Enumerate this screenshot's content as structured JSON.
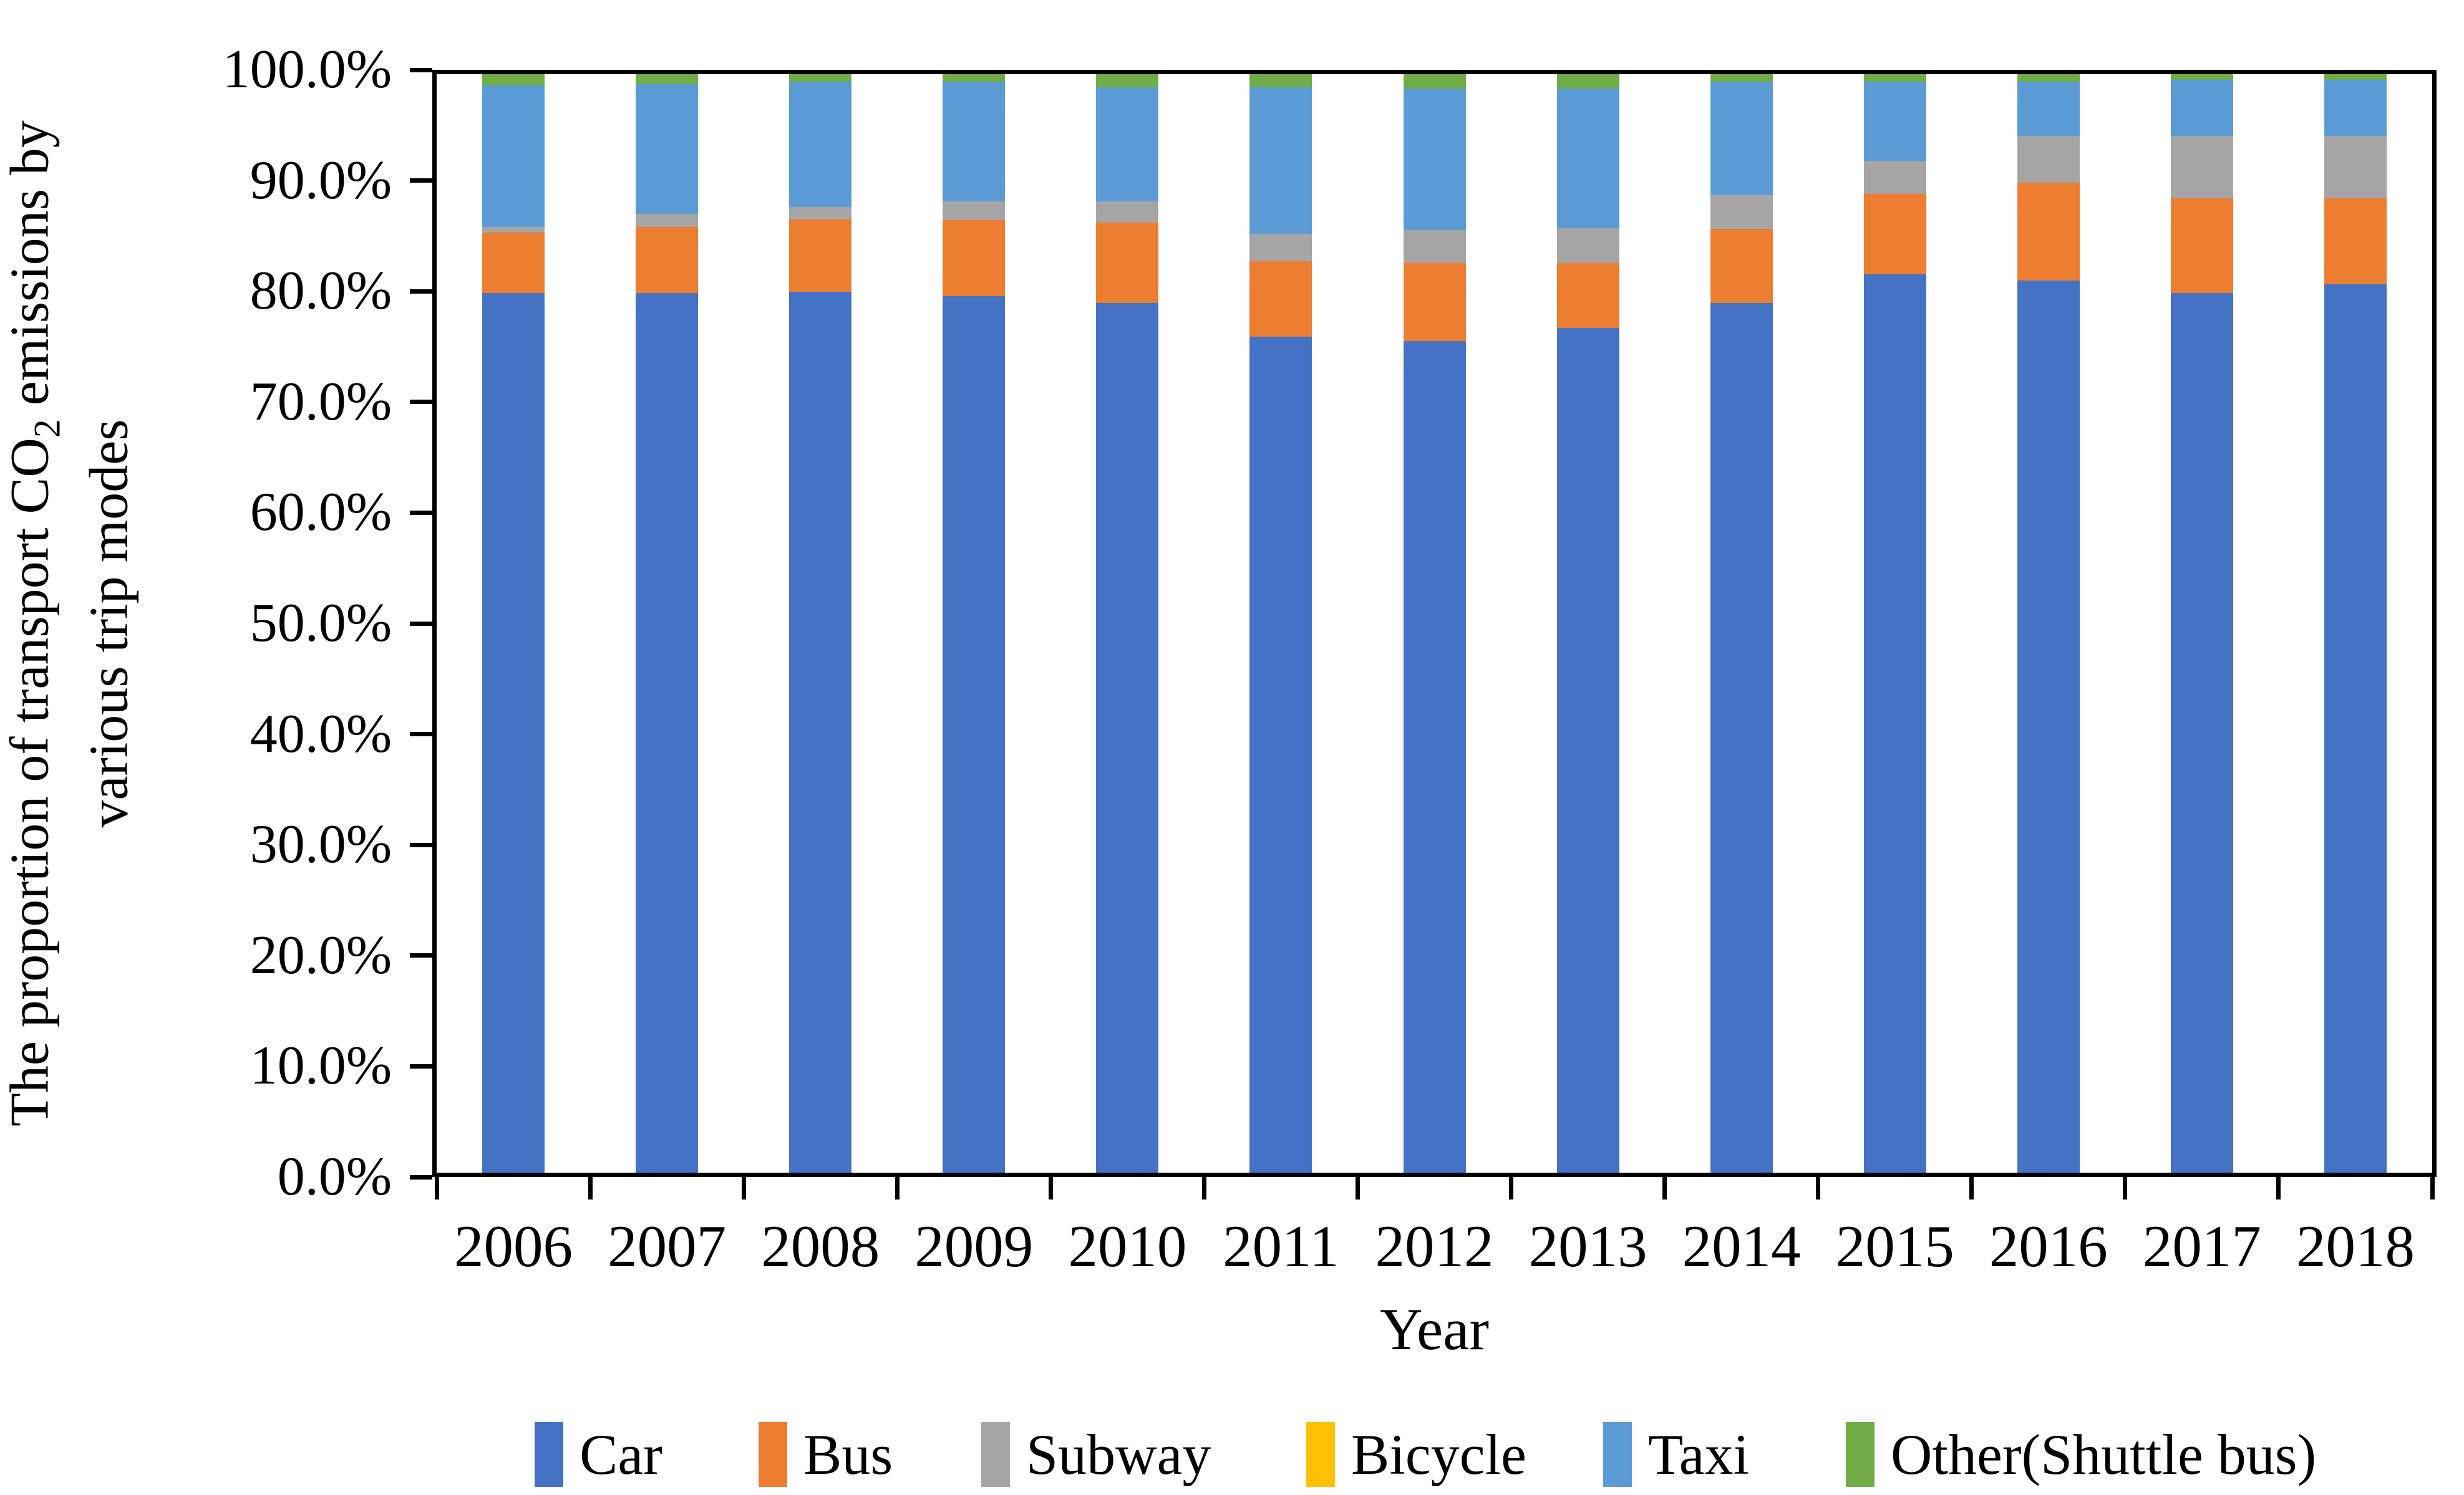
{
  "chart_data": {
    "type": "bar",
    "stacked": true,
    "orientation": "vertical",
    "grid": false,
    "legend_position": "bottom",
    "categories": [
      "2006",
      "2007",
      "2008",
      "2009",
      "2010",
      "2011",
      "2012",
      "2013",
      "2014",
      "2015",
      "2016",
      "2017",
      "2018"
    ],
    "series": [
      {
        "name": "Car",
        "color": "#4472C4",
        "values": [
          80.1,
          80.1,
          80.2,
          79.8,
          79.2,
          76.1,
          75.7,
          76.9,
          79.2,
          81.8,
          81.2,
          80.1,
          80.9
        ]
      },
      {
        "name": "Bus",
        "color": "#ED7D31",
        "values": [
          5.5,
          6.0,
          6.6,
          6.9,
          7.3,
          6.9,
          7.1,
          5.9,
          6.7,
          7.3,
          8.9,
          8.6,
          7.8
        ]
      },
      {
        "name": "Subway",
        "color": "#A5A5A5",
        "values": [
          0.5,
          1.2,
          1.1,
          1.7,
          1.9,
          2.5,
          3.0,
          3.2,
          3.1,
          3.0,
          4.3,
          5.7,
          5.7
        ]
      },
      {
        "name": "Bicycle",
        "color": "#FFC000",
        "values": [
          0.0,
          0.0,
          0.0,
          0.0,
          0.0,
          0.0,
          0.0,
          0.0,
          0.0,
          0.0,
          0.0,
          0.0,
          0.0
        ]
      },
      {
        "name": "Taxi",
        "color": "#5B9BD5",
        "values": [
          12.9,
          11.8,
          11.4,
          10.9,
          10.4,
          13.3,
          12.9,
          12.7,
          10.3,
          7.2,
          4.9,
          5.1,
          5.1
        ]
      },
      {
        "name": "Other(Shuttle bus)",
        "color": "#70AD47",
        "values": [
          1.0,
          0.9,
          0.7,
          0.7,
          1.2,
          1.2,
          1.3,
          1.3,
          0.7,
          0.7,
          0.7,
          0.5,
          0.5
        ]
      }
    ],
    "xlabel": "Year",
    "ylabel": "The proportion of transport CO2 emissions by various trip modes",
    "ylim": [
      0,
      100
    ],
    "y_tick_labels": [
      "100.0%",
      "90.0%",
      "80.0%",
      "70.0%",
      "60.0%",
      "50.0%",
      "40.0%",
      "30.0%",
      "20.0%",
      "10.0%",
      "0.0%"
    ]
  },
  "y_title": {
    "line1_pre_sub": "The proportion of transport CO",
    "sub": "2",
    "line1_post_sub": " emissions by",
    "line2": "various trip modes"
  },
  "x_title": "Year",
  "style": {
    "axis_color": "#000000",
    "background_color": "#ffffff",
    "legend_item_lefts": [
      857,
      1216,
      1573,
      2094,
      2570,
      2959
    ]
  }
}
